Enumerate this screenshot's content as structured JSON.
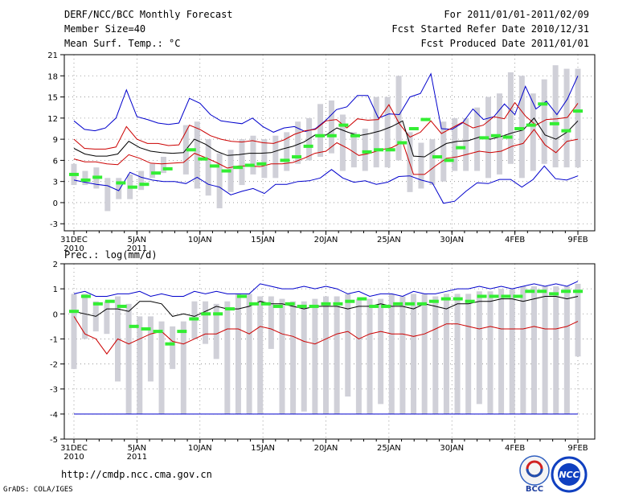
{
  "header": {
    "title": "DERF/NCC/BCC Monthly Forecast",
    "member_size": "Member Size=40",
    "variable": "Mean Surf. Temp.: °C",
    "period": "For 2011/01/01-2011/02/09",
    "refer_date": "Fcst Started Refer Date 2010/12/31",
    "produced_date": "Fcst Produced Date 2011/01/01"
  },
  "footer": {
    "url": "http://cmdp.ncc.cma.gov.cn",
    "grads": "GrADS: COLA/IGES",
    "logo_bcc": "BCC",
    "logo_ncc": "NCC"
  },
  "colors": {
    "max": "#0000cc",
    "min": "#0000cc",
    "std_band": "#cc0000",
    "mean": "#000000",
    "median": "#33ee33",
    "box": "#d0d0d8"
  },
  "chart_data": [
    {
      "type": "box",
      "title": "Mean Surf. Temp.: °C",
      "xlabel": "",
      "ylabel": "°C",
      "ylim": [
        -4,
        21
      ],
      "yticks": [
        -3,
        0,
        3,
        6,
        9,
        12,
        15,
        18,
        21
      ],
      "x_days": 40,
      "xticks": [
        {
          "day": 0,
          "label": "31DEC",
          "sub": "2010"
        },
        {
          "day": 5,
          "label": "5JAN",
          "sub": "2011"
        },
        {
          "day": 10,
          "label": "10JAN",
          "sub": ""
        },
        {
          "day": 15,
          "label": "15JAN",
          "sub": ""
        },
        {
          "day": 20,
          "label": "20JAN",
          "sub": ""
        },
        {
          "day": 25,
          "label": "25JAN",
          "sub": ""
        },
        {
          "day": 30,
          "label": "30JAN",
          "sub": ""
        },
        {
          "day": 35,
          "label": "4FEB",
          "sub": ""
        },
        {
          "day": 40,
          "label": "9FEB",
          "sub": ""
        }
      ],
      "series": [
        {
          "name": "max",
          "values": [
            11.6,
            10.4,
            10.2,
            10.6,
            12.0,
            16.0,
            12.2,
            11.8,
            11.3,
            11.1,
            11.3,
            14.8,
            14.1,
            12.5,
            11.6,
            11.4,
            11.2,
            12.0,
            10.8,
            10.0,
            10.6,
            10.8,
            10.1,
            10.5,
            11.7,
            13.2,
            13.6,
            15.2,
            15.2,
            12.0,
            12.6,
            12.5,
            15.0,
            15.5,
            18.3,
            10.5,
            10.4,
            11.3,
            13.3,
            11.8,
            12.2,
            14.0,
            12.5,
            16.5,
            13.3,
            14.4,
            12.5,
            14.7,
            18.0
          ]
        },
        {
          "name": "std_upper",
          "values": [
            9.0,
            7.7,
            7.6,
            7.6,
            7.9,
            10.8,
            9.0,
            8.4,
            8.4,
            8.1,
            8.2,
            11.0,
            10.4,
            9.5,
            9.0,
            8.7,
            8.6,
            8.8,
            8.5,
            8.4,
            8.9,
            9.7,
            10.2,
            10.4,
            11.6,
            11.8,
            10.6,
            11.9,
            11.7,
            11.8,
            13.9,
            11.2,
            9.3,
            10.0,
            11.6,
            9.8,
            10.6,
            11.4,
            10.6,
            11.0,
            12.2,
            11.9,
            14.2,
            12.3,
            11.0,
            11.8,
            11.9,
            12.1,
            14.1
          ]
        },
        {
          "name": "mean",
          "values": [
            7.7,
            6.9,
            6.6,
            6.6,
            6.9,
            8.7,
            7.8,
            7.3,
            7.1,
            7.0,
            7.1,
            9.0,
            8.3,
            7.3,
            6.7,
            6.8,
            7.0,
            7.0,
            7.1,
            7.6,
            8.0,
            8.6,
            9.6,
            9.6,
            10.6,
            10.0,
            9.5,
            9.8,
            10.2,
            10.8,
            11.6,
            6.6,
            6.5,
            7.5,
            8.4,
            8.7,
            8.8,
            9.3,
            9.0,
            9.4,
            9.9,
            10.3,
            12.0,
            9.6,
            9.0,
            10.0,
            11.6
          ]
        },
        {
          "name": "std_lower",
          "values": [
            6.2,
            5.8,
            5.8,
            5.5,
            5.4,
            6.8,
            6.3,
            5.6,
            5.5,
            5.6,
            5.7,
            7.0,
            6.4,
            5.7,
            4.9,
            5.2,
            5.2,
            5.1,
            5.5,
            5.5,
            5.7,
            6.3,
            7.0,
            7.3,
            8.5,
            7.7,
            6.7,
            7.0,
            7.5,
            7.8,
            8.6,
            4.0,
            4.0,
            5.2,
            6.3,
            6.5,
            6.9,
            7.3,
            7.1,
            7.3,
            8.0,
            8.4,
            10.4,
            8.2,
            7.1,
            8.7,
            9.0
          ]
        },
        {
          "name": "min",
          "values": [
            3.2,
            2.9,
            2.6,
            2.4,
            1.7,
            4.3,
            3.6,
            3.2,
            3.0,
            3.0,
            2.7,
            3.6,
            2.6,
            2.2,
            1.1,
            1.6,
            2.0,
            1.3,
            2.6,
            2.6,
            3.0,
            3.1,
            3.5,
            4.7,
            3.5,
            2.9,
            3.1,
            2.6,
            2.9,
            3.7,
            3.8,
            3.2,
            2.8,
            -0.1,
            0.2,
            1.6,
            2.8,
            2.7,
            3.3,
            3.3,
            2.2,
            3.3,
            5.2,
            3.4,
            3.2,
            3.8
          ]
        },
        {
          "name": "median",
          "values": [
            4.0,
            3.2,
            3.6,
            null,
            2.8,
            2.2,
            2.6,
            4.2,
            4.8,
            null,
            7.5,
            6.2,
            5.2,
            4.5,
            5.0,
            5.3,
            5.5,
            null,
            6.0,
            6.5,
            8.0,
            9.5,
            9.5,
            11.0,
            9.5,
            7.2,
            7.5,
            7.5,
            8.5,
            10.5,
            11.8,
            6.5,
            6.0,
            7.8,
            null,
            9.2,
            9.5,
            9.3,
            10.5,
            11.0,
            14.0,
            11.2,
            10.2,
            13.0
          ]
        }
      ],
      "boxes_lo": [
        2.5,
        2.5,
        2.0,
        -1.2,
        0.5,
        0.5,
        1.8,
        3.5,
        4.2,
        null,
        4.0,
        2.0,
        1.0,
        -0.8,
        1.5,
        2.5,
        4.0,
        3.5,
        3.5,
        4.5,
        5.5,
        6.0,
        6.5,
        7.0,
        4.5,
        5.0,
        4.5,
        5.0,
        5.0,
        6.0,
        1.5,
        2.0,
        2.5,
        3.0,
        4.5,
        4.5,
        4.5,
        3.5,
        4.0,
        5.5,
        3.5,
        4.5,
        5.5,
        5.0,
        5.0,
        5.0
      ],
      "boxes_hi": [
        5.5,
        4.5,
        5.0,
        3.5,
        3.5,
        4.0,
        4.5,
        5.5,
        6.5,
        null,
        11.0,
        11.5,
        9.0,
        7.0,
        7.5,
        9.0,
        9.5,
        9.0,
        9.5,
        10.0,
        11.5,
        12.0,
        14.0,
        14.5,
        12.5,
        10.0,
        10.5,
        15.0,
        15.0,
        18.0,
        10.0,
        8.5,
        9.0,
        11.5,
        12.0,
        12.0,
        13.5,
        15.0,
        15.5,
        18.5,
        18.0,
        15.5,
        17.5,
        19.5,
        19.0,
        19.0
      ]
    },
    {
      "type": "box",
      "title": "Prec.: log(mm/d)",
      "xlabel": "",
      "ylabel": "log(mm/d)",
      "ylim": [
        -5,
        2
      ],
      "yticks": [
        -5,
        -4,
        -3,
        -2,
        -1,
        0,
        1,
        2
      ],
      "x_days": 40,
      "xticks": [
        {
          "day": 0,
          "label": "31DEC",
          "sub": "2010"
        },
        {
          "day": 5,
          "label": "5JAN",
          "sub": "2011"
        },
        {
          "day": 10,
          "label": "10JAN",
          "sub": ""
        },
        {
          "day": 15,
          "label": "15JAN",
          "sub": ""
        },
        {
          "day": 20,
          "label": "20JAN",
          "sub": ""
        },
        {
          "day": 25,
          "label": "25JAN",
          "sub": ""
        },
        {
          "day": 30,
          "label": "30JAN",
          "sub": ""
        },
        {
          "day": 35,
          "label": "4FEB",
          "sub": ""
        },
        {
          "day": 40,
          "label": "9FEB",
          "sub": ""
        }
      ],
      "series": [
        {
          "name": "max",
          "values": [
            0.8,
            0.9,
            0.7,
            0.7,
            0.8,
            0.8,
            0.9,
            0.7,
            0.8,
            0.7,
            0.7,
            0.9,
            0.8,
            0.9,
            0.8,
            0.8,
            0.8,
            1.2,
            1.1,
            1.0,
            1.0,
            1.1,
            1.0,
            1.1,
            1.0,
            0.8,
            0.9,
            0.7,
            0.8,
            0.8,
            0.7,
            0.9,
            0.8,
            0.8,
            0.9,
            1.0,
            1.0,
            1.1,
            1.0,
            1.1,
            1.0,
            1.1,
            1.2,
            1.1,
            1.2,
            1.1,
            1.3
          ]
        },
        {
          "name": "mean",
          "values": [
            0.1,
            0.0,
            -0.1,
            0.2,
            0.2,
            0.1,
            0.5,
            0.5,
            0.4,
            -0.1,
            -0.0,
            -0.1,
            0.1,
            0.3,
            0.2,
            0.2,
            0.3,
            0.5,
            0.4,
            0.4,
            0.3,
            0.2,
            0.3,
            0.3,
            0.3,
            0.2,
            0.3,
            0.3,
            0.4,
            0.3,
            0.3,
            0.2,
            0.4,
            0.3,
            0.2,
            0.4,
            0.4,
            0.5,
            0.5,
            0.6,
            0.6,
            0.5,
            0.6,
            0.7,
            0.7,
            0.6,
            0.7
          ]
        },
        {
          "name": "std_lower",
          "values": [
            -0.1,
            -0.8,
            -1.0,
            -1.6,
            -1.0,
            -1.2,
            -1.0,
            -0.8,
            -0.7,
            -1.1,
            -1.2,
            -1.0,
            -0.8,
            -0.8,
            -0.6,
            -0.6,
            -0.8,
            -0.5,
            -0.6,
            -0.8,
            -0.9,
            -1.1,
            -1.2,
            -1.0,
            -0.8,
            -0.7,
            -1.0,
            -0.8,
            -0.7,
            -0.8,
            -0.8,
            -0.9,
            -0.8,
            -0.6,
            -0.4,
            -0.4,
            -0.5,
            -0.6,
            -0.5,
            -0.6,
            -0.6,
            -0.6,
            -0.5,
            -0.6,
            -0.6,
            -0.5,
            -0.3
          ]
        },
        {
          "name": "min",
          "values": [
            -4,
            -4,
            -4,
            -4,
            -4,
            -4,
            -4,
            -4,
            -4,
            -4,
            -4,
            -4,
            -4,
            -4,
            -4,
            -4,
            -4,
            -4,
            -4,
            -4,
            -4,
            -4,
            -4,
            -4,
            -4,
            -4,
            -4,
            -4,
            -4,
            -4,
            -4,
            -4,
            -4,
            -4,
            -4,
            -4,
            -4,
            -4,
            -4,
            -4,
            -4,
            -4,
            -4,
            -4,
            -4,
            -4,
            -4,
            -4
          ]
        },
        {
          "name": "median",
          "values": [
            0.1,
            0.7,
            0.4,
            0.5,
            0.3,
            -0.5,
            -0.6,
            -0.7,
            -1.2,
            -0.7,
            -0.2,
            0.0,
            0.0,
            0.2,
            0.7,
            0.4,
            0.4,
            0.3,
            0.4,
            0.3,
            0.3,
            0.4,
            0.4,
            0.5,
            0.6,
            0.3,
            0.3,
            0.4,
            0.4,
            0.4,
            0.5,
            0.6,
            0.6,
            0.5,
            0.7,
            0.7,
            0.7,
            0.7,
            0.9,
            0.9,
            0.8,
            0.9,
            0.9
          ]
        }
      ],
      "boxes_lo": [
        -2.2,
        -1.0,
        -0.7,
        -0.8,
        -2.7,
        -4.0,
        -4.0,
        -2.7,
        -4.0,
        -2.2,
        -4.0,
        -1.0,
        -1.2,
        -1.8,
        -4.0,
        -4.0,
        -4.0,
        -4.0,
        -1.4,
        -4.0,
        -4.0,
        -3.9,
        -4.0,
        -4.0,
        -4.0,
        -3.3,
        -4.0,
        -4.0,
        -3.6,
        -4.0,
        -4.0,
        -4.0,
        -4.0,
        -4.0,
        -4.0,
        -4.0,
        -4.0,
        -3.6,
        -4.0,
        -4.0,
        -4.0,
        -4.0,
        -4.0,
        -4.0,
        -4.0,
        -4.0,
        -1.7
      ],
      "boxes_hi": [
        0.8,
        0.8,
        0.5,
        0.5,
        0.7,
        0.4,
        -0.1,
        -0.1,
        -0.3,
        -0.5,
        -0.3,
        0.5,
        0.5,
        0.4,
        0.5,
        0.8,
        0.8,
        0.7,
        0.7,
        0.6,
        0.5,
        0.5,
        0.6,
        0.7,
        0.7,
        0.8,
        0.6,
        0.6,
        0.6,
        0.8,
        0.7,
        0.8,
        0.8,
        0.7,
        0.8,
        0.8,
        0.8,
        0.9,
        0.9,
        1.0,
        1.0,
        1.1,
        1.1,
        1.1,
        1.1,
        1.1,
        1.2
      ]
    }
  ]
}
